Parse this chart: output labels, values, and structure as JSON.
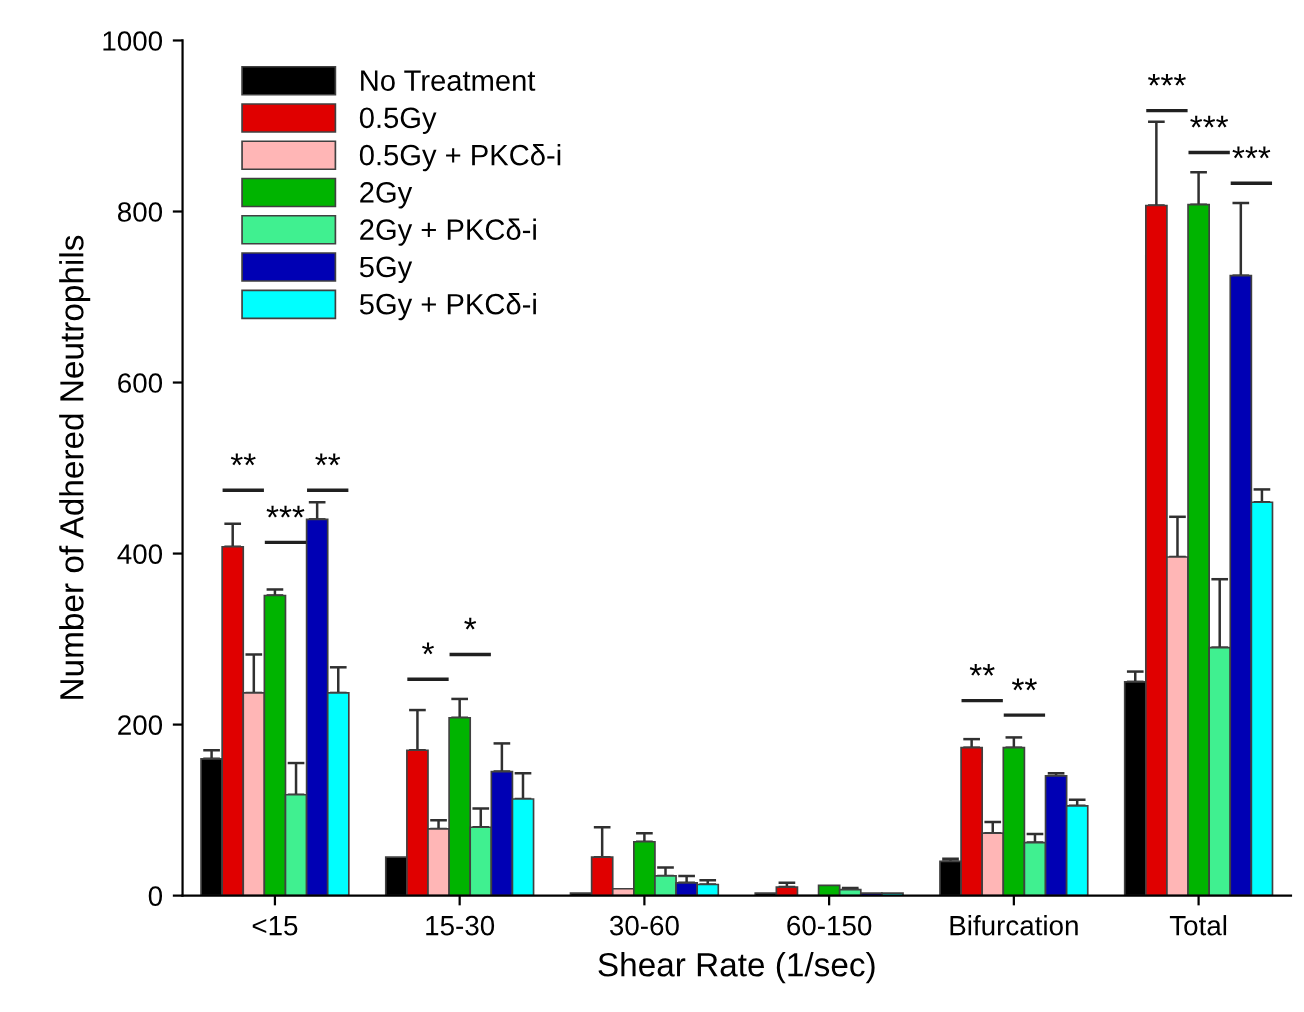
{
  "chart_data": {
    "type": "bar",
    "xlabel": "Shear Rate (1/sec)",
    "ylabel": "Number of Adhered Neutrophils",
    "categories": [
      "<15",
      "15-30",
      "30-60",
      "60-150",
      "Bifurcation",
      "Total"
    ],
    "ylim": [
      0,
      1000
    ],
    "yticks": [
      0,
      200,
      400,
      600,
      800,
      1000
    ],
    "grid": false,
    "legend": "top left",
    "series": [
      {
        "name": "No Treatment",
        "color": "#000000",
        "values": [
          160,
          45,
          3,
          3,
          40,
          250
        ],
        "errors": [
          10,
          null,
          null,
          null,
          3,
          12
        ]
      },
      {
        "name": "0.5Gy",
        "color": "#e00000",
        "values": [
          408,
          170,
          45,
          10,
          173,
          807
        ],
        "errors": [
          27,
          47,
          35,
          5,
          10,
          98
        ]
      },
      {
        "name": "0.5Gy + PKCδ-i",
        "color": "#ffb6b6",
        "values": [
          237,
          78,
          8,
          null,
          73,
          396
        ],
        "errors": [
          45,
          10,
          null,
          null,
          13,
          47
        ]
      },
      {
        "name": "2Gy",
        "color": "#00b400",
        "values": [
          351,
          208,
          63,
          12,
          173,
          808
        ],
        "errors": [
          7,
          22,
          10,
          null,
          12,
          38
        ]
      },
      {
        "name": "2Gy + PKCδ-i",
        "color": "#40f090",
        "values": [
          118,
          80,
          23,
          7,
          62,
          290
        ],
        "errors": [
          37,
          22,
          10,
          2,
          10,
          80
        ]
      },
      {
        "name": "5Gy",
        "color": "#0000b4",
        "values": [
          440,
          145,
          15,
          3,
          140,
          725
        ],
        "errors": [
          20,
          33,
          8,
          null,
          3,
          85
        ]
      },
      {
        "name": "5Gy + PKCδ-i",
        "color": "#00ffff",
        "values": [
          237,
          113,
          13,
          3,
          105,
          460
        ],
        "errors": [
          30,
          30,
          5,
          null,
          7,
          15
        ]
      }
    ],
    "annotations": [
      "**",
      "***",
      "**",
      "*",
      "*",
      "**",
      "**",
      "***",
      "***",
      "***"
    ]
  }
}
